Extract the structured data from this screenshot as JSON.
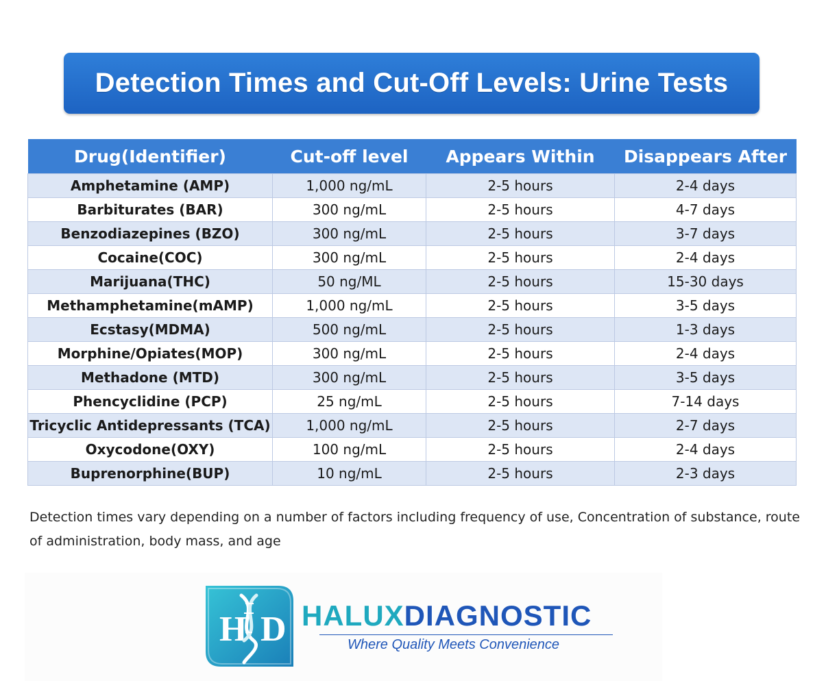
{
  "title": "Detection Times and Cut-Off Levels: Urine Tests",
  "table": {
    "headers": [
      "Drug(Identifier)",
      "Cut-off level",
      "Appears Within",
      "Disappears After"
    ],
    "rows": [
      [
        "Amphetamine (AMP)",
        "1,000 ng/mL",
        "2-5 hours",
        "2-4 days"
      ],
      [
        "Barbiturates (BAR)",
        "300 ng/mL",
        "2-5 hours",
        "4-7 days"
      ],
      [
        "Benzodiazepines (BZO)",
        "300 ng/mL",
        "2-5 hours",
        "3-7 days"
      ],
      [
        "Cocaine(COC)",
        "300 ng/mL",
        "2-5 hours",
        "2-4 days"
      ],
      [
        "Marijuana(THC)",
        "50 ng/ML",
        "2-5 hours",
        "15-30 days"
      ],
      [
        "Methamphetamine(mAMP)",
        "1,000 ng/mL",
        "2-5 hours",
        "3-5 days"
      ],
      [
        "Ecstasy(MDMA)",
        "500 ng/mL",
        "2-5 hours",
        "1-3 days"
      ],
      [
        "Morphine/Opiates(MOP)",
        "300 ng/mL",
        "2-5 hours",
        "2-4 days"
      ],
      [
        "Methadone (MTD)",
        "300 ng/mL",
        "2-5 hours",
        "3-5 days"
      ],
      [
        "Phencyclidine (PCP)",
        "25 ng/mL",
        "2-5 hours",
        "7-14 days"
      ],
      [
        "Tricyclic Antidepressants (TCA)",
        "1,000 ng/mL",
        "2-5 hours",
        "2-7 days"
      ],
      [
        "Oxycodone(OXY)",
        "100 ng/mL",
        "2-5 hours",
        "2-4 days"
      ],
      [
        "Buprenorphine(BUP)",
        "10 ng/mL",
        "2-5 hours",
        "2-3 days"
      ]
    ]
  },
  "footnote": "Detection times vary depending on a number of factors including frequency of use, Concentration of substance, route of administration, body mass, and age",
  "logo": {
    "monogram": "HXD",
    "brand_part1": "HALUX",
    "brand_part2": "DIAGNOSTIC",
    "tagline": "Where Quality Meets Convenience"
  },
  "colors": {
    "banner": "#2470cf",
    "header": "#3a7fd4",
    "row_alt": "#dde6f5",
    "brand_teal": "#1fa9bf",
    "brand_blue": "#1f56b8"
  }
}
